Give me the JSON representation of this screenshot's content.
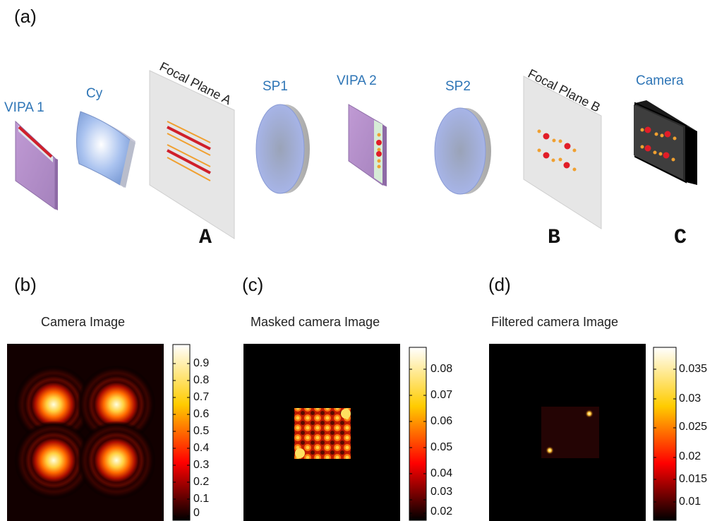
{
  "panels": {
    "a": "(a)",
    "b": "(b)",
    "c": "(c)",
    "d": "(d)"
  },
  "components": {
    "vipa1": "VIPA 1",
    "cy": "Cy",
    "focal_plane_a": "Focal Plane A",
    "sp1": "SP1",
    "vipa2": "VIPA 2",
    "sp2": "SP2",
    "focal_plane_b": "Focal Plane B",
    "camera": "Camera"
  },
  "plane_letters": {
    "a": "A",
    "b": "B",
    "c": "C"
  },
  "images": {
    "camera": {
      "title": "Camera Image",
      "colorbar_ticks": [
        "0.9",
        "0.8",
        "0.7",
        "0.6",
        "0.5",
        "0.4",
        "0.3",
        "0.2",
        "0.1",
        "0"
      ]
    },
    "masked": {
      "title": "Masked camera Image",
      "colorbar_ticks": [
        "0.08",
        "0.07",
        "0.06",
        "0.05",
        "0.04",
        "0.03",
        "0.02"
      ]
    },
    "filtered": {
      "title": "Filtered camera Image",
      "colorbar_ticks": [
        "0.035",
        "0.03",
        "0.025",
        "0.02",
        "0.015",
        "0.01"
      ]
    }
  },
  "colors": {
    "label_blue": "#2e75b6",
    "vipa_purple": "#b48fc8",
    "red_line": "#d0202a",
    "orange_line": "#f0a030",
    "lens_blue": "#a4b4e6"
  }
}
